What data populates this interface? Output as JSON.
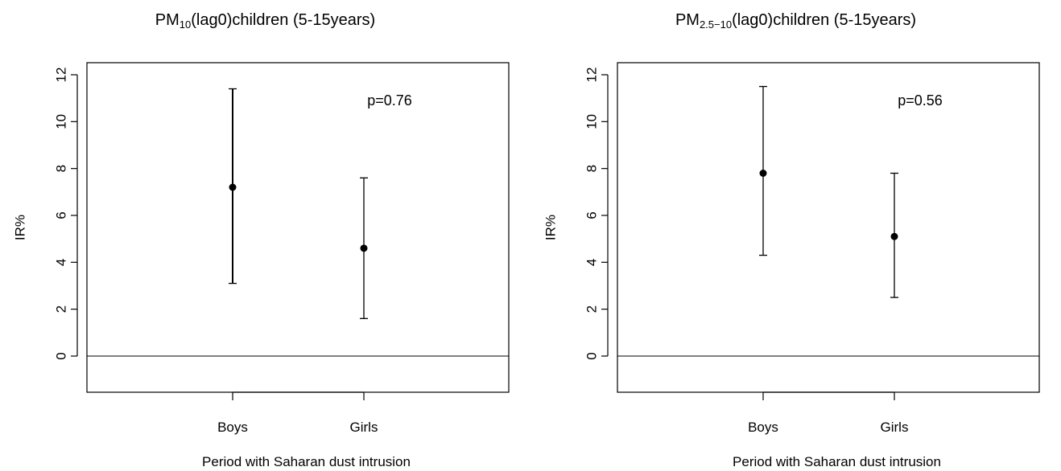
{
  "chart_data": [
    {
      "type": "errorbar",
      "title": {
        "pre": "PM",
        "sub": "10",
        "post": "(lag0)children (5-15years)"
      },
      "xlabel": "Period with Saharan dust intrusion",
      "ylabel": "IR%",
      "categories": [
        "Boys",
        "Girls"
      ],
      "estimates": [
        7.2,
        4.6
      ],
      "lower": [
        3.1,
        1.6
      ],
      "upper": [
        11.4,
        7.6
      ],
      "ylim": [
        -1.5,
        12.5
      ],
      "yticks": [
        "0",
        "2",
        "4",
        "6",
        "8",
        "10",
        "12"
      ],
      "reference_line": 0,
      "annotation": "p=0.76",
      "grid": false
    },
    {
      "type": "errorbar",
      "title": {
        "pre": "PM",
        "sub": "2.5−10",
        "post": "(lag0)children (5-15years)"
      },
      "xlabel": "Period with Saharan dust intrusion",
      "ylabel": "IR%",
      "categories": [
        "Boys",
        "Girls"
      ],
      "estimates": [
        7.8,
        5.1
      ],
      "lower": [
        4.3,
        2.5
      ],
      "upper": [
        11.5,
        7.8
      ],
      "ylim": [
        -1.5,
        12.5
      ],
      "yticks": [
        "0",
        "2",
        "4",
        "6",
        "8",
        "10",
        "12"
      ],
      "reference_line": 0,
      "annotation": "p=0.56",
      "grid": false
    }
  ]
}
